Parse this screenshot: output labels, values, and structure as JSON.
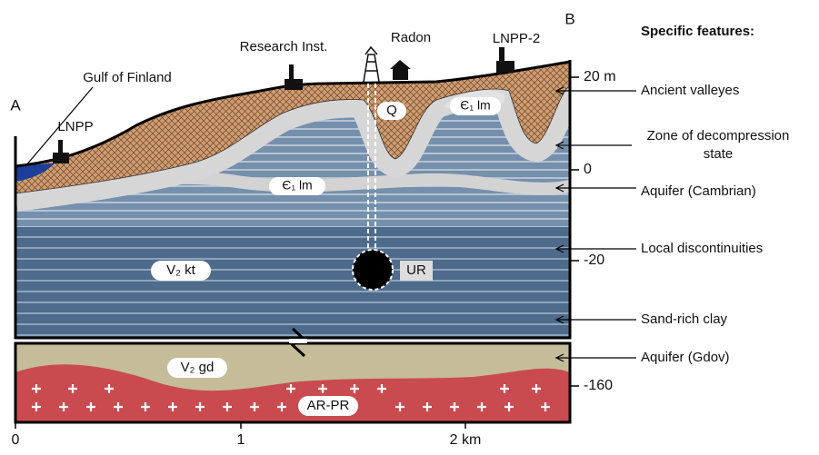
{
  "section": {
    "end_a": "A",
    "end_b": "B"
  },
  "surface_labels": {
    "gulf": "Gulf of Finland",
    "lnpp": "LNPP",
    "research": "Research Inst.",
    "radon": "Radon",
    "lnpp2": "LNPP-2"
  },
  "units": {
    "q": "Q",
    "cambrian_upper": "Є₁ lm",
    "cambrian_lower": "Є₁ lm",
    "kotlin": "V₂ kt",
    "ur": "UR",
    "gdov": "V₂ gd",
    "basement": "AR-PR"
  },
  "depth_ticks": [
    "20 m",
    "0",
    "-20",
    "-160"
  ],
  "distance_ticks": [
    "0",
    "1",
    "2 km"
  ],
  "features": {
    "title": "Specific features:",
    "items": [
      [
        "Ancient valleyes"
      ],
      [
        "Zone of decompression",
        "state"
      ],
      [
        "Aquifer (Cambrian)"
      ],
      [
        "Local discontinuities"
      ],
      [
        "Sand-rich clay"
      ],
      [
        "Aquifer (Gdov)"
      ]
    ]
  }
}
